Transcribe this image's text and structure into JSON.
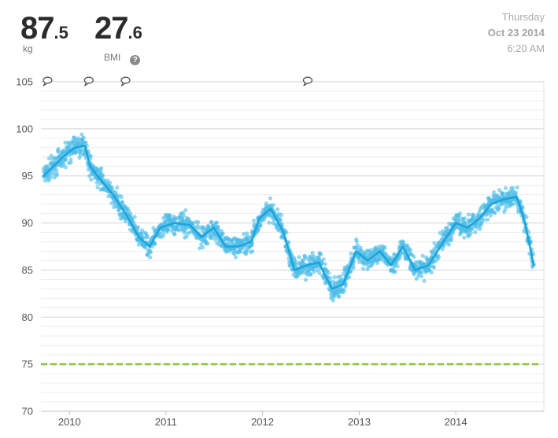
{
  "header": {
    "weight": {
      "whole": "87",
      "decimal": ".5",
      "unit": "kg"
    },
    "bmi": {
      "whole": "27",
      "decimal": ".6",
      "label": "BMI",
      "help_icon": "question-circle-icon"
    },
    "date": {
      "weekday": "Thursday",
      "date": "Oct 23 2014",
      "time": "6:20 AM"
    }
  },
  "chart_data": {
    "type": "scatter",
    "title": "",
    "xlabel": "",
    "ylabel": "",
    "xlim": [
      "2009-09-15",
      "2014-11-30"
    ],
    "ylim": [
      70,
      105
    ],
    "yticks": [
      "70",
      "75",
      "80",
      "85",
      "90",
      "95",
      "100",
      "105"
    ],
    "xticks": [
      "2010",
      "2011",
      "2012",
      "2013",
      "2014"
    ],
    "xtick_dates": [
      "2010-01-01",
      "2011-01-01",
      "2012-01-01",
      "2013-01-01",
      "2014-01-01"
    ],
    "grid": true,
    "goal": 75,
    "colors": {
      "points": "#4cbde8",
      "trend": "#1aa3dc",
      "goal": "#8cc63f",
      "grid": "#dcdcdc"
    },
    "note_icon": "speech-bubble-icon",
    "note_dates": [
      "2009-10-10",
      "2010-03-15",
      "2010-08-01",
      "2012-06-20"
    ],
    "trend": [
      [
        "2009-09-25",
        95.0
      ],
      [
        "2009-11-01",
        96.0
      ],
      [
        "2009-12-15",
        97.2
      ],
      [
        "2010-01-20",
        98.0
      ],
      [
        "2010-03-01",
        98.2
      ],
      [
        "2010-03-20",
        96.0
      ],
      [
        "2010-05-01",
        94.5
      ],
      [
        "2010-06-15",
        93.0
      ],
      [
        "2010-08-01",
        91.0
      ],
      [
        "2010-09-20",
        88.5
      ],
      [
        "2010-11-01",
        87.5
      ],
      [
        "2010-12-10",
        89.5
      ],
      [
        "2011-02-01",
        90.0
      ],
      [
        "2011-04-01",
        89.8
      ],
      [
        "2011-05-15",
        88.5
      ],
      [
        "2011-07-01",
        89.5
      ],
      [
        "2011-08-15",
        87.5
      ],
      [
        "2011-10-01",
        87.5
      ],
      [
        "2011-11-20",
        88.0
      ],
      [
        "2011-12-20",
        90.5
      ],
      [
        "2012-02-01",
        91.5
      ],
      [
        "2012-03-20",
        89.0
      ],
      [
        "2012-05-01",
        85.0
      ],
      [
        "2012-06-15",
        85.5
      ],
      [
        "2012-08-01",
        85.8
      ],
      [
        "2012-09-20",
        83.0
      ],
      [
        "2012-11-01",
        83.5
      ],
      [
        "2012-12-20",
        87.0
      ],
      [
        "2013-02-01",
        86.0
      ],
      [
        "2013-03-20",
        87.0
      ],
      [
        "2013-05-01",
        85.5
      ],
      [
        "2013-06-15",
        87.5
      ],
      [
        "2013-08-01",
        85.0
      ],
      [
        "2013-09-20",
        85.5
      ],
      [
        "2013-11-15",
        88.0
      ],
      [
        "2014-01-01",
        90.0
      ],
      [
        "2014-02-15",
        89.5
      ],
      [
        "2014-04-01",
        90.5
      ],
      [
        "2014-05-15",
        92.0
      ],
      [
        "2014-07-01",
        92.5
      ],
      [
        "2014-08-20",
        92.8
      ],
      [
        "2014-09-20",
        90.0
      ],
      [
        "2014-10-23",
        85.5
      ]
    ]
  }
}
